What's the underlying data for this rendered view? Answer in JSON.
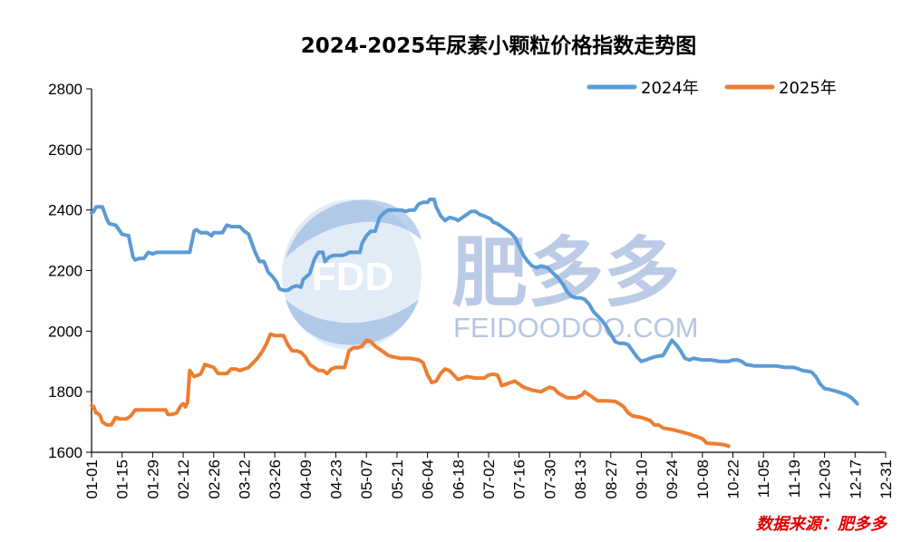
{
  "chart_data": {
    "type": "line",
    "title": "2024-2025年尿素小颗粒价格指数走势图",
    "xlabel": "",
    "ylabel": "",
    "ylim": [
      1600,
      2800
    ],
    "yticks": [
      1600,
      1800,
      2000,
      2200,
      2400,
      2600,
      2800
    ],
    "xticks": [
      "01-01",
      "01-15",
      "01-29",
      "02-12",
      "02-26",
      "03-12",
      "03-26",
      "04-09",
      "04-23",
      "05-07",
      "05-21",
      "06-04",
      "06-18",
      "07-02",
      "07-16",
      "07-30",
      "08-13",
      "08-27",
      "09-10",
      "09-24",
      "10-08",
      "10-22",
      "11-05",
      "11-19",
      "12-03",
      "12-17",
      "12-31"
    ],
    "x_unit": "day of year (01-01 = 0)",
    "legend_position": "top-right",
    "series": [
      {
        "name": "2024年",
        "color": "#5b9bd5",
        "points": [
          [
            0,
            2390
          ],
          [
            1,
            2395
          ],
          [
            2,
            2410
          ],
          [
            5,
            2410
          ],
          [
            6,
            2390
          ],
          [
            7,
            2370
          ],
          [
            8,
            2355
          ],
          [
            11,
            2350
          ],
          [
            13,
            2330
          ],
          [
            14,
            2320
          ],
          [
            17,
            2315
          ],
          [
            18,
            2280
          ],
          [
            19,
            2245
          ],
          [
            20,
            2235
          ],
          [
            22,
            2240
          ],
          [
            24,
            2240
          ],
          [
            26,
            2260
          ],
          [
            28,
            2255
          ],
          [
            30,
            2260
          ],
          [
            45,
            2260
          ],
          [
            47,
            2330
          ],
          [
            48,
            2335
          ],
          [
            50,
            2325
          ],
          [
            53,
            2325
          ],
          [
            55,
            2315
          ],
          [
            56,
            2325
          ],
          [
            60,
            2325
          ],
          [
            62,
            2350
          ],
          [
            64,
            2345
          ],
          [
            68,
            2345
          ],
          [
            70,
            2330
          ],
          [
            72,
            2320
          ],
          [
            74,
            2280
          ],
          [
            75,
            2260
          ],
          [
            77,
            2230
          ],
          [
            79,
            2230
          ],
          [
            81,
            2195
          ],
          [
            83,
            2180
          ],
          [
            85,
            2160
          ],
          [
            86,
            2140
          ],
          [
            88,
            2135
          ],
          [
            90,
            2135
          ],
          [
            92,
            2145
          ],
          [
            94,
            2150
          ],
          [
            96,
            2145
          ],
          [
            97,
            2170
          ],
          [
            100,
            2190
          ],
          [
            102,
            2235
          ],
          [
            104,
            2260
          ],
          [
            106,
            2260
          ],
          [
            107,
            2230
          ],
          [
            109,
            2245
          ],
          [
            111,
            2250
          ],
          [
            113,
            2250
          ],
          [
            115,
            2250
          ],
          [
            117,
            2255
          ],
          [
            118,
            2260
          ],
          [
            120,
            2260
          ],
          [
            123,
            2260
          ],
          [
            124,
            2290
          ],
          [
            126,
            2315
          ],
          [
            128,
            2330
          ],
          [
            130,
            2330
          ],
          [
            132,
            2375
          ],
          [
            134,
            2390
          ],
          [
            136,
            2400
          ],
          [
            139,
            2400
          ],
          [
            142,
            2400
          ],
          [
            144,
            2395
          ],
          [
            146,
            2400
          ],
          [
            148,
            2400
          ],
          [
            150,
            2420
          ],
          [
            152,
            2425
          ],
          [
            154,
            2425
          ],
          [
            155,
            2435
          ],
          [
            157,
            2435
          ],
          [
            158,
            2410
          ],
          [
            160,
            2380
          ],
          [
            162,
            2365
          ],
          [
            164,
            2375
          ],
          [
            167,
            2370
          ],
          [
            168,
            2365
          ],
          [
            170,
            2375
          ],
          [
            172,
            2385
          ],
          [
            174,
            2395
          ],
          [
            176,
            2395
          ],
          [
            178,
            2385
          ],
          [
            180,
            2380
          ],
          [
            183,
            2370
          ],
          [
            184,
            2360
          ],
          [
            186,
            2355
          ],
          [
            188,
            2345
          ],
          [
            190,
            2335
          ],
          [
            192,
            2325
          ],
          [
            194,
            2310
          ],
          [
            196,
            2280
          ],
          [
            198,
            2250
          ],
          [
            200,
            2230
          ],
          [
            202,
            2215
          ],
          [
            204,
            2210
          ],
          [
            206,
            2215
          ],
          [
            209,
            2210
          ],
          [
            211,
            2195
          ],
          [
            214,
            2175
          ],
          [
            216,
            2155
          ],
          [
            218,
            2130
          ],
          [
            220,
            2115
          ],
          [
            222,
            2110
          ],
          [
            224,
            2110
          ],
          [
            226,
            2105
          ],
          [
            228,
            2090
          ],
          [
            230,
            2065
          ],
          [
            232,
            2050
          ],
          [
            234,
            2035
          ],
          [
            236,
            2015
          ],
          [
            238,
            1990
          ],
          [
            240,
            1965
          ],
          [
            242,
            1960
          ],
          [
            244,
            1960
          ],
          [
            246,
            1955
          ],
          [
            248,
            1935
          ],
          [
            250,
            1915
          ],
          [
            252,
            1900
          ],
          [
            254,
            1905
          ],
          [
            258,
            1915
          ],
          [
            262,
            1920
          ],
          [
            264,
            1945
          ],
          [
            266,
            1970
          ],
          [
            268,
            1955
          ],
          [
            270,
            1935
          ],
          [
            272,
            1910
          ],
          [
            274,
            1905
          ],
          [
            276,
            1910
          ],
          [
            280,
            1905
          ],
          [
            284,
            1905
          ],
          [
            288,
            1900
          ],
          [
            292,
            1900
          ],
          [
            294,
            1905
          ],
          [
            296,
            1905
          ],
          [
            298,
            1900
          ],
          [
            300,
            1890
          ],
          [
            304,
            1885
          ],
          [
            310,
            1885
          ],
          [
            314,
            1885
          ],
          [
            318,
            1880
          ],
          [
            322,
            1880
          ],
          [
            326,
            1870
          ],
          [
            330,
            1865
          ],
          [
            332,
            1850
          ],
          [
            334,
            1825
          ],
          [
            336,
            1810
          ],
          [
            338,
            1808
          ],
          [
            342,
            1800
          ],
          [
            346,
            1790
          ],
          [
            348,
            1782
          ],
          [
            350,
            1768
          ],
          [
            351,
            1760
          ]
        ]
      },
      {
        "name": "2025年",
        "color": "#ed7d31",
        "points": [
          [
            0,
            1755
          ],
          [
            1,
            1750
          ],
          [
            2,
            1730
          ],
          [
            3,
            1728
          ],
          [
            4,
            1720
          ],
          [
            5,
            1700
          ],
          [
            7,
            1690
          ],
          [
            9,
            1690
          ],
          [
            11,
            1715
          ],
          [
            13,
            1710
          ],
          [
            16,
            1710
          ],
          [
            18,
            1720
          ],
          [
            20,
            1740
          ],
          [
            22,
            1740
          ],
          [
            26,
            1740
          ],
          [
            30,
            1740
          ],
          [
            34,
            1740
          ],
          [
            35,
            1725
          ],
          [
            37,
            1725
          ],
          [
            39,
            1730
          ],
          [
            41,
            1755
          ],
          [
            42,
            1760
          ],
          [
            43,
            1750
          ],
          [
            44,
            1765
          ],
          [
            45,
            1870
          ],
          [
            47,
            1850
          ],
          [
            50,
            1858
          ],
          [
            52,
            1890
          ],
          [
            54,
            1885
          ],
          [
            56,
            1880
          ],
          [
            58,
            1860
          ],
          [
            60,
            1860
          ],
          [
            62,
            1860
          ],
          [
            64,
            1875
          ],
          [
            66,
            1875
          ],
          [
            68,
            1870
          ],
          [
            70,
            1875
          ],
          [
            72,
            1880
          ],
          [
            74,
            1895
          ],
          [
            76,
            1910
          ],
          [
            78,
            1930
          ],
          [
            80,
            1955
          ],
          [
            82,
            1990
          ],
          [
            84,
            1985
          ],
          [
            86,
            1985
          ],
          [
            88,
            1985
          ],
          [
            90,
            1955
          ],
          [
            92,
            1935
          ],
          [
            94,
            1935
          ],
          [
            96,
            1930
          ],
          [
            98,
            1915
          ],
          [
            100,
            1890
          ],
          [
            102,
            1880
          ],
          [
            104,
            1870
          ],
          [
            106,
            1870
          ],
          [
            108,
            1860
          ],
          [
            110,
            1875
          ],
          [
            112,
            1880
          ],
          [
            116,
            1880
          ],
          [
            118,
            1935
          ],
          [
            120,
            1945
          ],
          [
            122,
            1945
          ],
          [
            124,
            1950
          ],
          [
            126,
            1970
          ],
          [
            128,
            1965
          ],
          [
            130,
            1950
          ],
          [
            132,
            1940
          ],
          [
            134,
            1930
          ],
          [
            136,
            1920
          ],
          [
            138,
            1915
          ],
          [
            142,
            1910
          ],
          [
            146,
            1910
          ],
          [
            150,
            1905
          ],
          [
            152,
            1895
          ],
          [
            154,
            1855
          ],
          [
            156,
            1830
          ],
          [
            158,
            1835
          ],
          [
            160,
            1860
          ],
          [
            162,
            1875
          ],
          [
            164,
            1870
          ],
          [
            166,
            1855
          ],
          [
            168,
            1840
          ],
          [
            170,
            1845
          ],
          [
            172,
            1850
          ],
          [
            176,
            1845
          ],
          [
            180,
            1845
          ],
          [
            182,
            1855
          ],
          [
            184,
            1858
          ],
          [
            186,
            1855
          ],
          [
            187,
            1840
          ],
          [
            188,
            1820
          ],
          [
            190,
            1825
          ],
          [
            194,
            1835
          ],
          [
            196,
            1825
          ],
          [
            198,
            1815
          ],
          [
            202,
            1805
          ],
          [
            206,
            1800
          ],
          [
            208,
            1808
          ],
          [
            210,
            1815
          ],
          [
            212,
            1810
          ],
          [
            214,
            1795
          ],
          [
            218,
            1780
          ],
          [
            222,
            1780
          ],
          [
            225,
            1790
          ],
          [
            226,
            1800
          ],
          [
            228,
            1790
          ],
          [
            230,
            1780
          ],
          [
            232,
            1770
          ],
          [
            236,
            1770
          ],
          [
            240,
            1768
          ],
          [
            242,
            1760
          ],
          [
            244,
            1750
          ],
          [
            246,
            1730
          ],
          [
            248,
            1720
          ],
          [
            252,
            1715
          ],
          [
            254,
            1710
          ],
          [
            256,
            1705
          ],
          [
            258,
            1690
          ],
          [
            260,
            1690
          ],
          [
            262,
            1680
          ],
          [
            266,
            1675
          ],
          [
            270,
            1668
          ],
          [
            274,
            1660
          ],
          [
            278,
            1650
          ],
          [
            280,
            1645
          ],
          [
            282,
            1630
          ],
          [
            286,
            1628
          ],
          [
            290,
            1625
          ],
          [
            292,
            1620
          ]
        ]
      }
    ]
  },
  "watermark": {
    "logo_text": "FDD",
    "brand_cn": "肥多多",
    "brand_en": "FEIDOODOO.COM"
  },
  "source_text": "数据来源：肥多多",
  "colors": {
    "series_2024": "#5b9bd5",
    "series_2025": "#ed7d31",
    "source_text": "#e00000",
    "watermark": "#a9bde0"
  }
}
